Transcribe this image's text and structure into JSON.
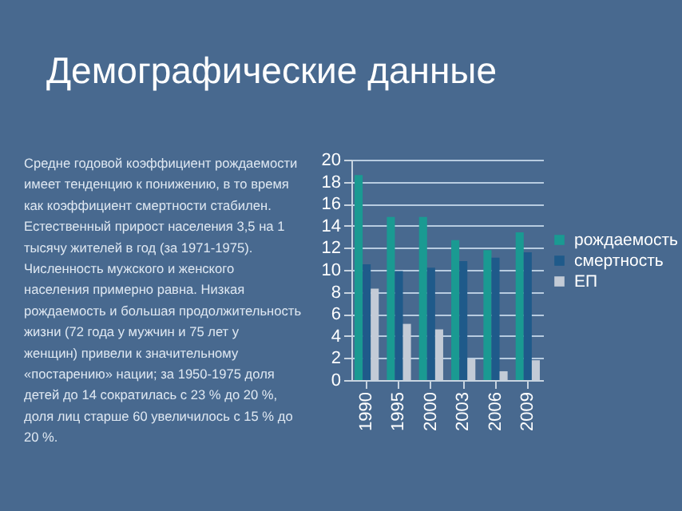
{
  "chart_data": {
    "type": "bar",
    "title": "Демографические данные",
    "annotations": [
      "Средне годовой коэффициент рождаемости имеет тенденцию к понижению, в то время как коэффициент смертности стабилен. Естественный прирост населения 3,5 на 1 тысячу жителей в год (за 1971-1975). Численность мужского и женского населения примерно равна. Низкая рождаемость и большая продолжительность жизни (72 года у мужчин и 75 лет у женщин) привели к значительному «постарению» нации; за 1950-1975 доля детей до 14 сократилась с 23 % до 20 %, доля лиц старше 60 увеличилось с 15 % до 20 %."
    ],
    "categories": [
      "1990",
      "1995",
      "2000",
      "2003",
      "2006",
      "2009"
    ],
    "series": [
      {
        "name": "рождаемость",
        "color": "#1a9a92",
        "values": [
          18.6,
          14.8,
          14.8,
          12.7,
          11.8,
          13.4
        ]
      },
      {
        "name": "смертность",
        "color": "#1f5a8a",
        "values": [
          10.5,
          9.9,
          10.2,
          10.8,
          11.1,
          11.6
        ]
      },
      {
        "name": "ЕП",
        "color": "#c3cbd6",
        "values": [
          8.3,
          5.1,
          4.6,
          1.9,
          0.8,
          1.8
        ]
      }
    ],
    "ylim": [
      0,
      20
    ],
    "yticks": [
      0,
      2,
      4,
      6,
      8,
      10,
      12,
      14,
      16,
      18,
      20
    ],
    "grid": "y",
    "legend": "right"
  }
}
